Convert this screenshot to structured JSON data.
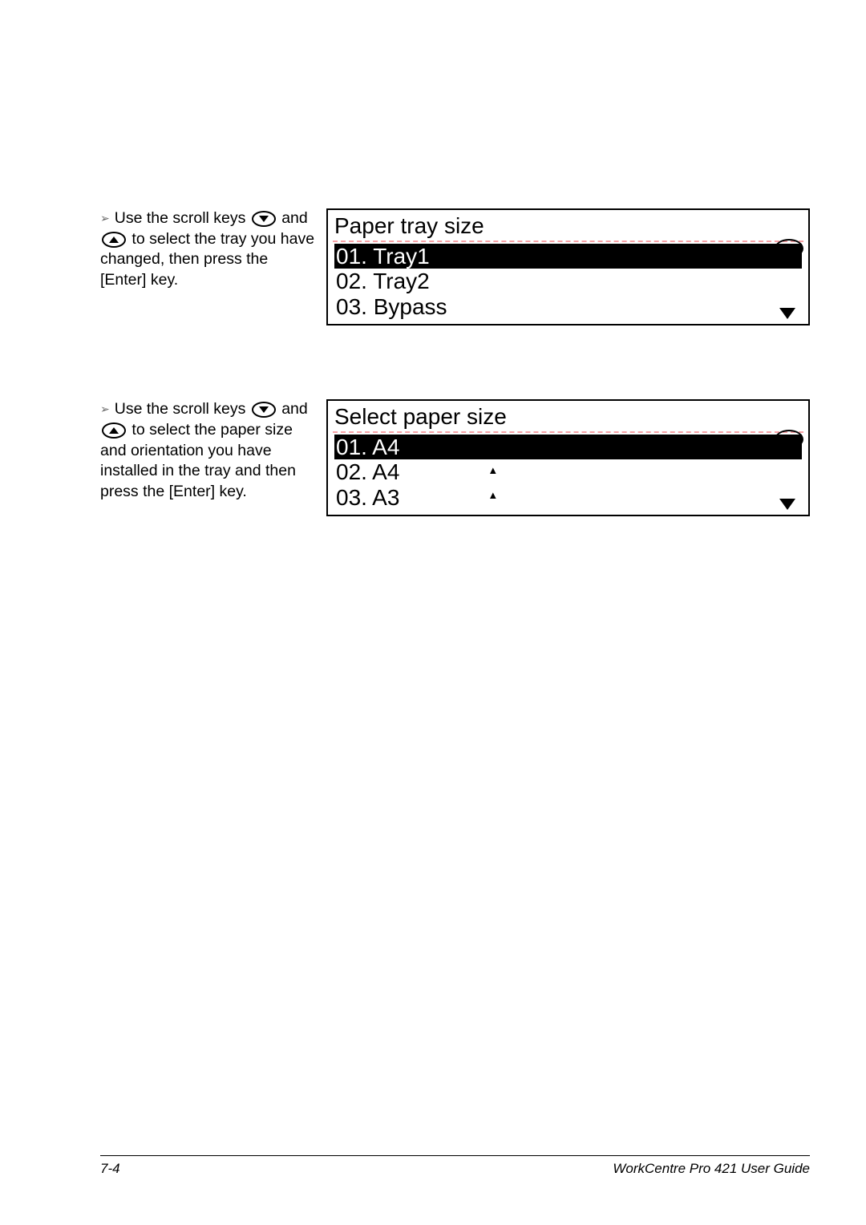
{
  "step1": {
    "text_parts": {
      "a": "Use the scroll keys ",
      "b": " and ",
      "c": " to select the tray you have changed, then press the [Enter] key."
    }
  },
  "step2": {
    "text_parts": {
      "a": "Use the scroll keys ",
      "b": " and ",
      "c": " to select the paper size and orientation you have installed in the tray and then press the [Enter] key."
    }
  },
  "display1": {
    "title": "Paper tray size",
    "items": [
      {
        "label": "01. Tray1",
        "selected": true
      },
      {
        "label": "02. Tray2",
        "selected": false
      },
      {
        "label": "03. Bypass",
        "selected": false
      }
    ]
  },
  "display2": {
    "title": "Select paper size",
    "items": [
      {
        "label": "01. A4",
        "selected": true,
        "marker": ""
      },
      {
        "label": "02. A4",
        "selected": false,
        "marker": "▲"
      },
      {
        "label": "03. A3",
        "selected": false,
        "marker": "▲"
      }
    ]
  },
  "footer": {
    "page": "7-4",
    "guide": "WorkCentre Pro 421 User Guide"
  },
  "colors": {
    "dotted": "#f6a1a5",
    "text": "#000000",
    "bg": "#ffffff"
  }
}
